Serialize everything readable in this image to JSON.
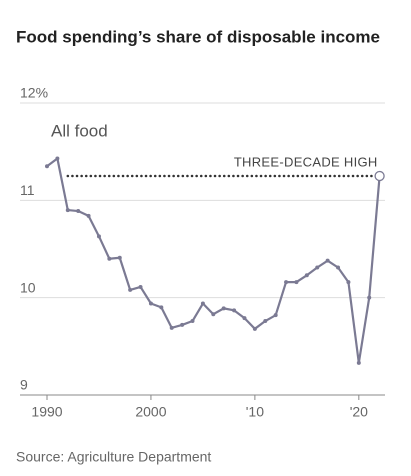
{
  "chart_data": {
    "type": "line",
    "title": "Food spending’s share of disposable income",
    "source": "Source: Agriculture Department",
    "x": [
      1990,
      1991,
      1992,
      1993,
      1994,
      1995,
      1996,
      1997,
      1998,
      1999,
      2000,
      2001,
      2002,
      2003,
      2004,
      2005,
      2006,
      2007,
      2008,
      2009,
      2010,
      2011,
      2012,
      2013,
      2014,
      2015,
      2016,
      2017,
      2018,
      2019,
      2020,
      2021,
      2022
    ],
    "series": [
      {
        "name": "All food",
        "color": "#7b7a93",
        "values": [
          11.35,
          11.43,
          10.9,
          10.89,
          10.84,
          10.63,
          10.4,
          10.41,
          10.08,
          10.11,
          9.94,
          9.9,
          9.69,
          9.72,
          9.76,
          9.94,
          9.83,
          9.89,
          9.87,
          9.79,
          9.68,
          9.76,
          9.82,
          10.16,
          10.16,
          10.23,
          10.31,
          10.38,
          10.31,
          10.16,
          9.33,
          10.0,
          11.25
        ]
      }
    ],
    "reference_line": {
      "label": "THREE-DECADE HIGH",
      "value": 11.25,
      "x": [
        1992,
        2022
      ]
    },
    "xlim": [
      1989,
      2023
    ],
    "xticks": [
      1990,
      2000,
      {
        "value": 2010,
        "label": "'10"
      },
      {
        "value": 2020,
        "label": "'20"
      }
    ],
    "ylim": [
      9,
      12
    ],
    "yticks": [
      9,
      10,
      11,
      {
        "value": 12,
        "label": "12%"
      }
    ],
    "grid": true
  }
}
